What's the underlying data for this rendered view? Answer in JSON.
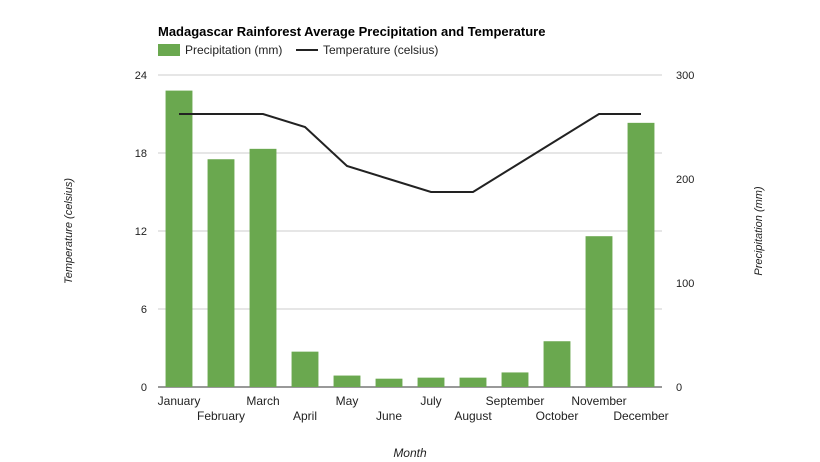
{
  "chart_data": {
    "type": "bar",
    "title": "Madagascar Rainforest Average Precipitation and Temperature",
    "xlabel": "Month",
    "ylabel_left": "Temperature (celsius)",
    "ylabel_right": "Precipitation (mm)",
    "categories": [
      "January",
      "February",
      "March",
      "April",
      "May",
      "June",
      "July",
      "August",
      "September",
      "October",
      "November",
      "December"
    ],
    "series": [
      {
        "name": "Precipitation (mm)",
        "type": "bar",
        "axis": "right",
        "color": "#6aa84f",
        "values": [
          285,
          219,
          229,
          34,
          11,
          8,
          9,
          9,
          14,
          44,
          145,
          254
        ]
      },
      {
        "name": "Temperature (celsius)",
        "type": "line",
        "axis": "left",
        "color": "#222222",
        "values": [
          21,
          21,
          21,
          20,
          17,
          16,
          15,
          15,
          17,
          19,
          21,
          21
        ]
      }
    ],
    "ylim_left": [
      0,
      24
    ],
    "yticks_left": [
      "0",
      "6",
      "12",
      "18",
      "24"
    ],
    "ylim_right": [
      0,
      300
    ],
    "yticks_right": [
      "0",
      "100",
      "200",
      "300"
    ],
    "grid": true,
    "legend_position": "top-left"
  }
}
